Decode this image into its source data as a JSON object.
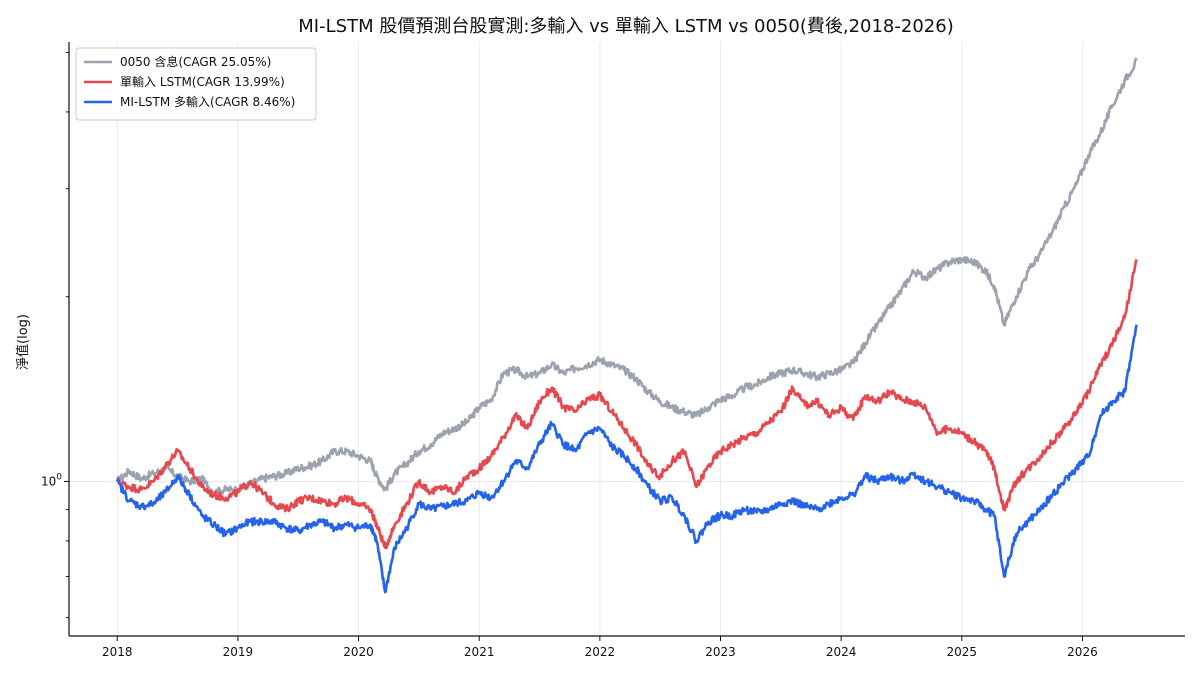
{
  "chart_data": {
    "type": "line",
    "title": "MI-LSTM 股價預測台股實測:多輸入 vs 單輸入 LSTM vs 0050(費後,2018-2026)",
    "xlabel": "",
    "ylabel": "淨值(log)",
    "y_scale": "log",
    "x_ticks": [
      "2018",
      "2019",
      "2020",
      "2021",
      "2022",
      "2023",
      "2024",
      "2025",
      "2026"
    ],
    "y_ticks": [
      "10^0"
    ],
    "xlim": [
      2017.6,
      2026.85
    ],
    "ylim": [
      0.56,
      5.2
    ],
    "grid": true,
    "legend": "top-left",
    "series": [
      {
        "name": "0050 含息(CAGR 25.05%)",
        "color": "#9CA3AF",
        "x": [
          2018.0,
          2018.1,
          2018.2,
          2018.3,
          2018.4,
          2018.5,
          2018.6,
          2018.7,
          2018.8,
          2018.9,
          2019.0,
          2019.1,
          2019.2,
          2019.3,
          2019.4,
          2019.5,
          2019.6,
          2019.7,
          2019.8,
          2019.9,
          2020.0,
          2020.1,
          2020.15,
          2020.22,
          2020.3,
          2020.4,
          2020.5,
          2020.6,
          2020.7,
          2020.8,
          2020.9,
          2021.0,
          2021.1,
          2021.2,
          2021.3,
          2021.4,
          2021.5,
          2021.6,
          2021.7,
          2021.8,
          2021.9,
          2022.0,
          2022.1,
          2022.2,
          2022.3,
          2022.4,
          2022.5,
          2022.6,
          2022.7,
          2022.8,
          2022.9,
          2023.0,
          2023.1,
          2023.2,
          2023.3,
          2023.4,
          2023.5,
          2023.6,
          2023.7,
          2023.8,
          2023.9,
          2024.0,
          2024.1,
          2024.2,
          2024.3,
          2024.4,
          2024.5,
          2024.6,
          2024.7,
          2024.8,
          2024.9,
          2025.0,
          2025.1,
          2025.2,
          2025.27,
          2025.35,
          2025.45,
          2025.55,
          2025.65,
          2025.75,
          2025.85,
          2025.95,
          2026.05,
          2026.15,
          2026.25,
          2026.35,
          2026.45
        ],
        "values": [
          1.0,
          1.04,
          1.01,
          1.03,
          1.05,
          1.02,
          1.0,
          1.01,
          0.96,
          0.97,
          0.97,
          0.99,
          1.01,
          1.02,
          1.03,
          1.05,
          1.06,
          1.08,
          1.12,
          1.12,
          1.1,
          1.08,
          1.02,
          0.97,
          1.03,
          1.07,
          1.12,
          1.15,
          1.2,
          1.22,
          1.25,
          1.32,
          1.36,
          1.5,
          1.52,
          1.48,
          1.5,
          1.55,
          1.5,
          1.53,
          1.55,
          1.58,
          1.55,
          1.52,
          1.47,
          1.4,
          1.35,
          1.32,
          1.3,
          1.28,
          1.32,
          1.36,
          1.38,
          1.42,
          1.44,
          1.48,
          1.5,
          1.52,
          1.5,
          1.48,
          1.5,
          1.52,
          1.56,
          1.68,
          1.8,
          1.92,
          2.05,
          2.2,
          2.15,
          2.22,
          2.28,
          2.3,
          2.28,
          2.2,
          2.08,
          1.8,
          2.0,
          2.2,
          2.35,
          2.55,
          2.8,
          3.05,
          3.4,
          3.7,
          4.1,
          4.5,
          4.85
        ]
      },
      {
        "name": "單輸入 LSTM(CAGR 13.99%)",
        "color": "#E5484D",
        "x": [
          2018.0,
          2018.1,
          2018.2,
          2018.3,
          2018.4,
          2018.5,
          2018.6,
          2018.7,
          2018.8,
          2018.9,
          2019.0,
          2019.1,
          2019.2,
          2019.3,
          2019.4,
          2019.5,
          2019.6,
          2019.7,
          2019.8,
          2019.9,
          2020.0,
          2020.1,
          2020.15,
          2020.22,
          2020.3,
          2020.4,
          2020.5,
          2020.6,
          2020.7,
          2020.8,
          2020.9,
          2021.0,
          2021.1,
          2021.2,
          2021.3,
          2021.4,
          2021.5,
          2021.6,
          2021.7,
          2021.8,
          2021.9,
          2022.0,
          2022.1,
          2022.2,
          2022.3,
          2022.4,
          2022.5,
          2022.6,
          2022.7,
          2022.8,
          2022.9,
          2023.0,
          2023.1,
          2023.2,
          2023.3,
          2023.4,
          2023.5,
          2023.6,
          2023.7,
          2023.8,
          2023.9,
          2024.0,
          2024.1,
          2024.2,
          2024.3,
          2024.4,
          2024.5,
          2024.6,
          2024.7,
          2024.8,
          2024.9,
          2025.0,
          2025.1,
          2025.2,
          2025.27,
          2025.35,
          2025.45,
          2025.55,
          2025.65,
          2025.75,
          2025.85,
          2025.95,
          2026.05,
          2026.15,
          2026.25,
          2026.35,
          2026.45
        ],
        "values": [
          1.0,
          0.98,
          0.97,
          1.0,
          1.06,
          1.12,
          1.05,
          0.98,
          0.95,
          0.94,
          0.96,
          1.0,
          0.96,
          0.92,
          0.9,
          0.93,
          0.94,
          0.93,
          0.92,
          0.94,
          0.92,
          0.9,
          0.85,
          0.78,
          0.85,
          0.92,
          1.0,
          0.96,
          0.98,
          0.96,
          1.02,
          1.05,
          1.1,
          1.18,
          1.28,
          1.22,
          1.35,
          1.42,
          1.32,
          1.3,
          1.36,
          1.38,
          1.3,
          1.22,
          1.15,
          1.06,
          1.02,
          1.08,
          1.12,
          0.98,
          1.06,
          1.12,
          1.15,
          1.18,
          1.2,
          1.25,
          1.3,
          1.42,
          1.33,
          1.35,
          1.28,
          1.32,
          1.26,
          1.38,
          1.35,
          1.4,
          1.36,
          1.35,
          1.32,
          1.2,
          1.22,
          1.2,
          1.16,
          1.12,
          1.05,
          0.9,
          1.0,
          1.05,
          1.1,
          1.16,
          1.22,
          1.3,
          1.4,
          1.55,
          1.68,
          1.85,
          2.3
        ]
      },
      {
        "name": "MI-LSTM 多輸入(CAGR 8.46%)",
        "color": "#2563EB",
        "x": [
          2018.0,
          2018.1,
          2018.2,
          2018.3,
          2018.4,
          2018.5,
          2018.6,
          2018.7,
          2018.8,
          2018.9,
          2019.0,
          2019.1,
          2019.2,
          2019.3,
          2019.4,
          2019.5,
          2019.6,
          2019.7,
          2019.8,
          2019.9,
          2020.0,
          2020.1,
          2020.15,
          2020.22,
          2020.3,
          2020.4,
          2020.5,
          2020.6,
          2020.7,
          2020.8,
          2020.9,
          2021.0,
          2021.1,
          2021.2,
          2021.3,
          2021.4,
          2021.5,
          2021.6,
          2021.7,
          2021.8,
          2021.9,
          2022.0,
          2022.1,
          2022.2,
          2022.3,
          2022.4,
          2022.5,
          2022.6,
          2022.7,
          2022.8,
          2022.9,
          2023.0,
          2023.1,
          2023.2,
          2023.3,
          2023.4,
          2023.5,
          2023.6,
          2023.7,
          2023.8,
          2023.9,
          2024.0,
          2024.1,
          2024.2,
          2024.3,
          2024.4,
          2024.5,
          2024.6,
          2024.7,
          2024.8,
          2024.9,
          2025.0,
          2025.1,
          2025.2,
          2025.27,
          2025.35,
          2025.45,
          2025.55,
          2025.65,
          2025.75,
          2025.85,
          2025.95,
          2026.05,
          2026.15,
          2026.25,
          2026.35,
          2026.45
        ],
        "values": [
          1.0,
          0.93,
          0.91,
          0.92,
          0.96,
          1.02,
          0.95,
          0.88,
          0.85,
          0.82,
          0.84,
          0.86,
          0.86,
          0.86,
          0.84,
          0.83,
          0.85,
          0.86,
          0.84,
          0.85,
          0.84,
          0.85,
          0.8,
          0.66,
          0.78,
          0.84,
          0.92,
          0.9,
          0.91,
          0.92,
          0.93,
          0.96,
          0.94,
          1.0,
          1.08,
          1.05,
          1.15,
          1.24,
          1.15,
          1.12,
          1.2,
          1.22,
          1.14,
          1.1,
          1.05,
          0.98,
          0.93,
          0.94,
          0.88,
          0.8,
          0.86,
          0.88,
          0.88,
          0.9,
          0.89,
          0.9,
          0.92,
          0.93,
          0.91,
          0.9,
          0.92,
          0.94,
          0.95,
          1.02,
          1.0,
          1.02,
          1.0,
          1.03,
          1.0,
          0.98,
          0.96,
          0.94,
          0.93,
          0.9,
          0.88,
          0.7,
          0.82,
          0.86,
          0.9,
          0.95,
          1.0,
          1.05,
          1.1,
          1.28,
          1.35,
          1.4,
          1.8
        ]
      }
    ]
  }
}
